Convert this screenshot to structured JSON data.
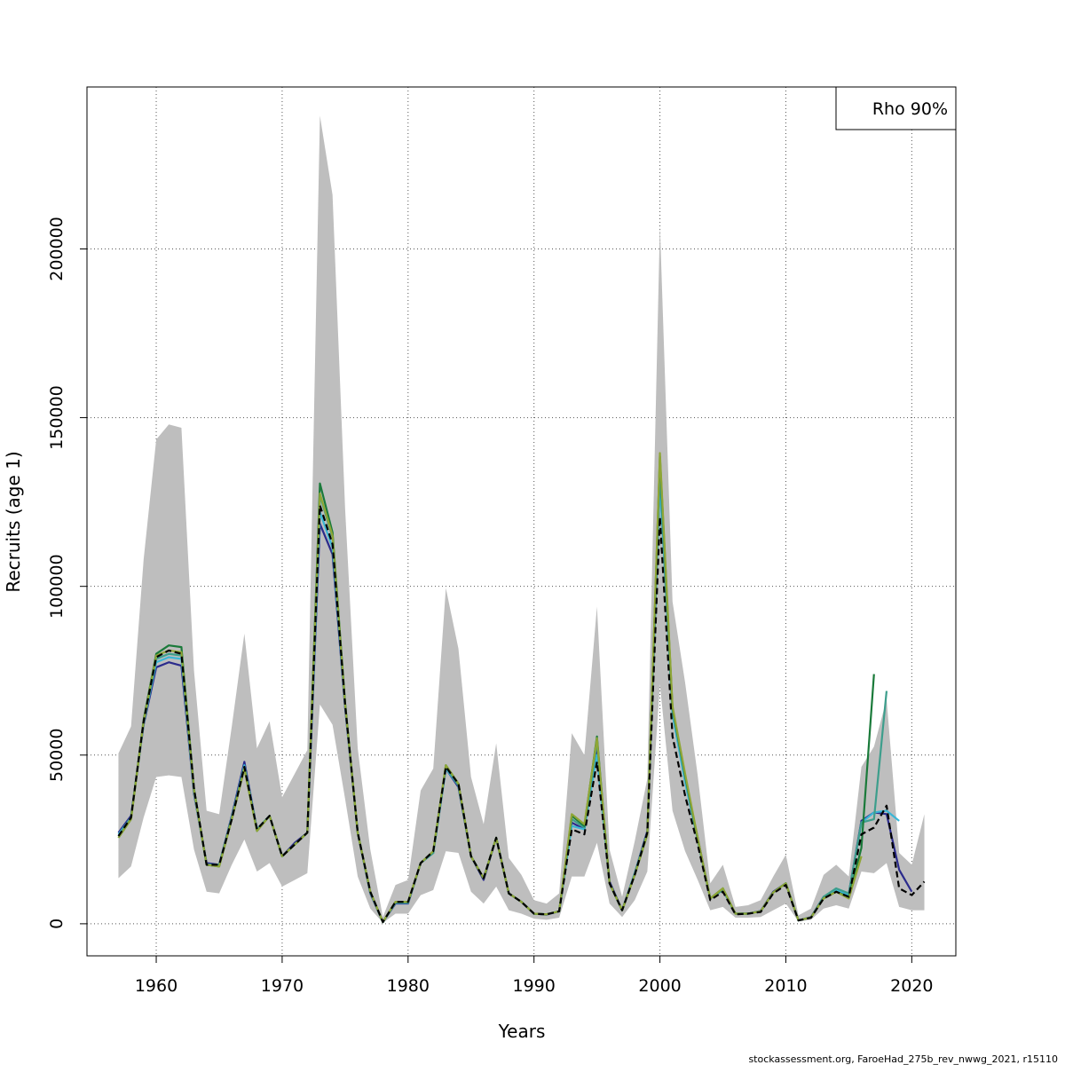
{
  "chart_data": {
    "type": "line",
    "title": "",
    "xlabel": "Years",
    "ylabel": "Recruits (age 1)",
    "xlim": [
      1954.5,
      2023.5
    ],
    "ylim": [
      -9500,
      248000
    ],
    "x_ticks": [
      1960,
      1970,
      1980,
      1990,
      2000,
      2010,
      2020
    ],
    "y_ticks": [
      0,
      50000,
      100000,
      150000,
      200000
    ],
    "x_tick_labels": [
      "1960",
      "1970",
      "1980",
      "1990",
      "2000",
      "2010",
      "2020"
    ],
    "y_tick_labels": [
      "0",
      "50000",
      "100000",
      "150000",
      "200000"
    ],
    "grid": true,
    "legend": {
      "placement": "top-right",
      "text": "Rho 90%"
    },
    "confidence_band": {
      "color": "#bebebe",
      "x": [
        1957,
        1958,
        1959,
        1960,
        1961,
        1962,
        1963,
        1964,
        1965,
        1966,
        1967,
        1968,
        1969,
        1970,
        1971,
        1972,
        1973,
        1974,
        1975,
        1976,
        1977,
        1978,
        1979,
        1980,
        1981,
        1982,
        1983,
        1984,
        1985,
        1986,
        1987,
        1988,
        1989,
        1990,
        1991,
        1992,
        1993,
        1994,
        1995,
        1996,
        1997,
        1998,
        1999,
        2000,
        2001,
        2002,
        2003,
        2004,
        2005,
        2006,
        2007,
        2008,
        2009,
        2010,
        2011,
        2012,
        2013,
        2014,
        2015,
        2016,
        2017,
        2018,
        2019,
        2020,
        2021
      ],
      "upper": [
        50500,
        58500,
        108000,
        143500,
        148000,
        147000,
        75000,
        33500,
        32500,
        58500,
        86000,
        52000,
        60000,
        37500,
        44500,
        51500,
        239500,
        216000,
        123000,
        52000,
        22000,
        2000,
        11500,
        13000,
        39500,
        46000,
        99500,
        81500,
        43500,
        29500,
        53500,
        19500,
        14500,
        7000,
        6000,
        9000,
        56500,
        50000,
        94000,
        22000,
        8000,
        24500,
        43000,
        207000,
        95500,
        71500,
        44000,
        12000,
        17500,
        5000,
        5500,
        7000,
        14000,
        20500,
        2500,
        4500,
        14500,
        17500,
        14000,
        46500,
        52500,
        66500,
        21000,
        17500,
        32500
      ],
      "lower": [
        13500,
        17000,
        31500,
        43500,
        44000,
        43500,
        22000,
        9500,
        9000,
        17500,
        25000,
        15500,
        18000,
        11000,
        13000,
        15000,
        65000,
        59000,
        37000,
        14000,
        4500,
        300,
        3000,
        3000,
        8500,
        10000,
        21500,
        21000,
        9500,
        6000,
        11000,
        4000,
        3000,
        1500,
        1200,
        1800,
        14000,
        14000,
        24000,
        6000,
        2000,
        7000,
        15500,
        71000,
        33500,
        21500,
        13000,
        4000,
        5000,
        1800,
        1800,
        2000,
        4000,
        6000,
        700,
        1200,
        4500,
        5500,
        4500,
        15500,
        15000,
        18000,
        5000,
        4000,
        4000
      ]
    },
    "series": [
      {
        "color": "#000000",
        "dashed": true,
        "start": 1957,
        "values": [
          26000,
          31500,
          60000,
          79000,
          81000,
          80000,
          40000,
          17500,
          17500,
          31000,
          46500,
          28000,
          32000,
          20000,
          23500,
          27000,
          124000,
          112500,
          65000,
          27000,
          9500,
          500,
          6500,
          6500,
          18000,
          21500,
          46500,
          41500,
          20000,
          13500,
          25500,
          9000,
          6500,
          3000,
          2800,
          3700,
          28000,
          26500,
          48000,
          12000,
          4000,
          14500,
          27000,
          120500,
          55500,
          38000,
          23500,
          7000,
          9500,
          2800,
          3000,
          3500,
          9000,
          11500,
          1000,
          1800,
          7500,
          9500,
          8000,
          26500,
          28500,
          35000,
          10500,
          8500,
          12500
        ]
      },
      {
        "color": "#2b2b8c",
        "start": 1957,
        "values": [
          27000,
          32000,
          59000,
          76000,
          77500,
          76500,
          38500,
          18000,
          17500,
          32000,
          48000,
          28000,
          32000,
          20000,
          24000,
          27000,
          118500,
          109500,
          64000,
          27000,
          9000,
          500,
          6000,
          6000,
          18000,
          21000,
          46000,
          40500,
          20000,
          13000,
          25500,
          9000,
          6500,
          3000,
          2700,
          3700,
          30000,
          28000,
          52000,
          12500,
          4000,
          15000,
          27500,
          131500,
          63000,
          43000,
          25500,
          7500,
          10000,
          3000,
          3000,
          3800,
          9500,
          12000,
          1000,
          2000,
          8000,
          10000,
          9000,
          30500,
          33000,
          32500,
          16000,
          9500
        ]
      },
      {
        "color": "#3ab6d6",
        "start": 1957,
        "values": [
          26500,
          31500,
          59500,
          77500,
          79000,
          78500,
          39000,
          17500,
          17500,
          31500,
          47000,
          28000,
          32000,
          20000,
          23500,
          27000,
          122000,
          111500,
          64500,
          27000,
          9200,
          500,
          6200,
          6200,
          18000,
          21000,
          46000,
          41000,
          20000,
          13500,
          25500,
          9000,
          6500,
          3000,
          2800,
          3700,
          29000,
          28000,
          50000,
          12000,
          4000,
          15000,
          27000,
          131000,
          62000,
          42000,
          25000,
          7500,
          10000,
          3000,
          3000,
          3700,
          9300,
          12000,
          1000,
          1900,
          7800,
          10000,
          8500,
          30000,
          33000,
          33500,
          30500
        ]
      },
      {
        "color": "#3d9e8c",
        "start": 1957,
        "values": [
          26000,
          31500,
          59500,
          78500,
          80000,
          79500,
          39500,
          17500,
          17500,
          31500,
          46500,
          28000,
          32000,
          20000,
          23500,
          27000,
          127000,
          114500,
          65000,
          27000,
          9300,
          500,
          6300,
          6300,
          18000,
          21000,
          46500,
          41000,
          20000,
          13500,
          25500,
          9000,
          6500,
          3000,
          2800,
          3700,
          31000,
          28500,
          54000,
          12000,
          4000,
          14800,
          27000,
          134000,
          63500,
          43500,
          25000,
          7500,
          10000,
          3000,
          3000,
          3700,
          9300,
          12000,
          1000,
          1900,
          8000,
          10500,
          9000,
          30000,
          31000,
          69000
        ]
      },
      {
        "color": "#1a7a3a",
        "start": 1957,
        "values": [
          25500,
          31000,
          60500,
          80000,
          82500,
          82000,
          40000,
          17500,
          17000,
          31000,
          46000,
          27500,
          32000,
          20000,
          23500,
          27000,
          130500,
          116000,
          65500,
          27000,
          9500,
          500,
          6500,
          6500,
          18000,
          21500,
          47000,
          41500,
          20000,
          13500,
          25500,
          9000,
          6500,
          3000,
          2800,
          3700,
          32000,
          29000,
          55500,
          12000,
          4000,
          14500,
          26500,
          138500,
          64000,
          44000,
          25000,
          7500,
          10500,
          3000,
          3000,
          3700,
          9300,
          12000,
          1000,
          1900,
          7500,
          9500,
          8000,
          22500,
          74000
        ]
      },
      {
        "color": "#8fa636",
        "start": 1957,
        "values": [
          25500,
          31000,
          60000,
          79500,
          81000,
          80500,
          39500,
          17500,
          17000,
          31000,
          46000,
          27500,
          32000,
          20000,
          23500,
          27000,
          127500,
          115000,
          65000,
          27000,
          9500,
          500,
          6500,
          6500,
          18000,
          21500,
          47000,
          41500,
          20000,
          13500,
          25500,
          9000,
          6500,
          3000,
          2800,
          3700,
          32500,
          29500,
          55000,
          12000,
          4000,
          14500,
          26500,
          139500,
          64500,
          44500,
          25500,
          7500,
          10500,
          3000,
          3000,
          3700,
          9300,
          12000,
          1000,
          1900,
          7500,
          9500,
          7500,
          20000
        ]
      }
    ]
  },
  "footer_text": "stockassessment.org, FaroeHad_275b_rev_nwwg_2021, r15110"
}
